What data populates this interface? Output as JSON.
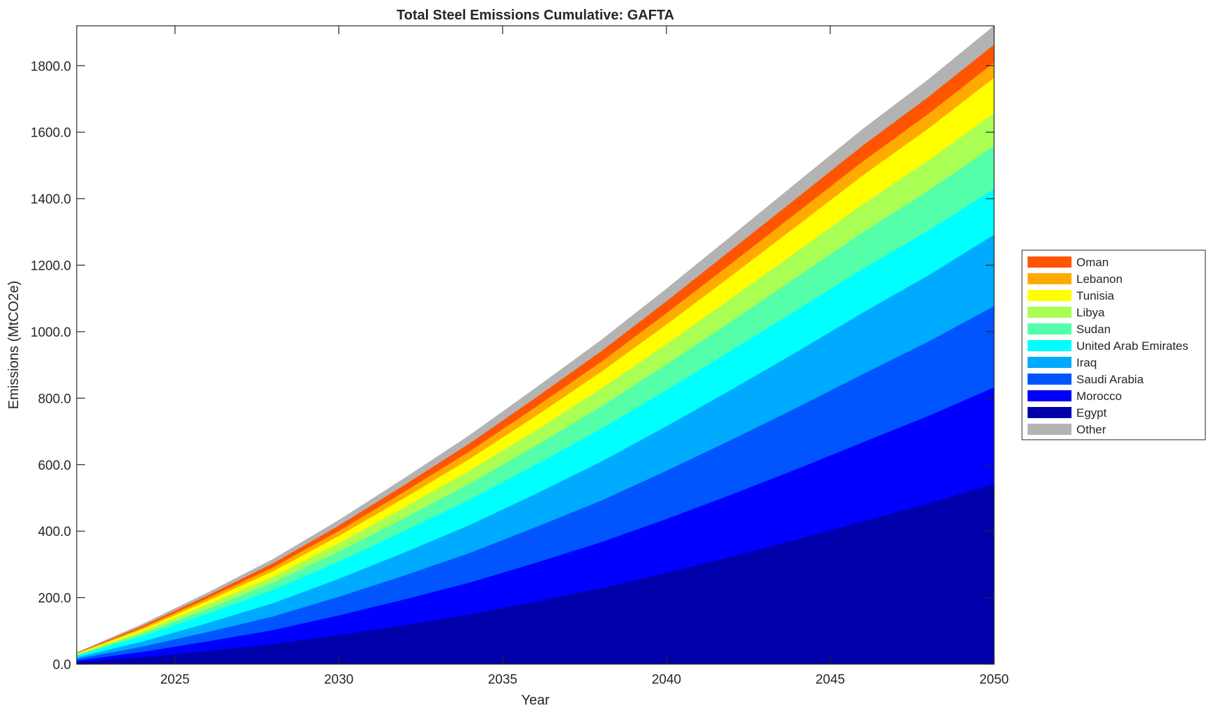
{
  "chart_data": {
    "type": "area",
    "stacked": true,
    "title": "Total Steel Emissions Cumulative: GAFTA",
    "xlabel": "Year",
    "ylabel": "Emissions (MtCO2e)",
    "xlim": [
      2022,
      2050
    ],
    "ylim": [
      0,
      1920
    ],
    "xticks": [
      2025,
      2030,
      2035,
      2040,
      2045,
      2050
    ],
    "yticks": [
      0,
      200,
      400,
      600,
      800,
      1000,
      1200,
      1400,
      1600,
      1800
    ],
    "ytick_labels": [
      "0.0",
      "200.0",
      "400.0",
      "600.0",
      "800.0",
      "1000.0",
      "1200.0",
      "1400.0",
      "1600.0",
      "1800.0"
    ],
    "legend_placement": "right",
    "grid": false,
    "x": [
      2022,
      2024,
      2026,
      2028,
      2030,
      2032,
      2034,
      2036,
      2038,
      2040,
      2042,
      2044,
      2046,
      2048,
      2050
    ],
    "series": [
      {
        "name": "Egypt",
        "color": "#0000aa",
        "values": [
          6,
          21,
          40,
          61,
          88,
          118,
          150,
          188,
          229,
          275,
          324,
          376,
          430,
          484,
          543
        ]
      },
      {
        "name": "Morocco",
        "color": "#0000ff",
        "values": [
          5,
          16,
          29,
          42,
          59,
          77,
          96,
          117,
          138,
          162,
          187,
          212,
          238,
          263,
          290
        ]
      },
      {
        "name": "Saudi Arabia",
        "color": "#0055ff",
        "values": [
          5,
          16,
          28,
          41,
          56,
          72,
          89,
          107,
          125,
          145,
          165,
          185,
          205,
          224,
          244
        ]
      },
      {
        "name": "Iraq",
        "color": "#00aaff",
        "values": [
          5,
          15,
          27,
          40,
          54,
          69,
          84,
          100,
          117,
          134,
          151,
          168,
          185,
          199,
          215
        ]
      },
      {
        "name": "United Arab Emirates",
        "color": "#00ffff",
        "values": [
          5,
          16,
          28,
          40,
          52,
          65,
          77,
          88,
          99,
          109,
          118,
          126,
          132,
          135,
          138
        ]
      },
      {
        "name": "Sudan",
        "color": "#55ffaa",
        "values": [
          2,
          8,
          15,
          22,
          30,
          39,
          48,
          57,
          67,
          77,
          88,
          99,
          110,
          120,
          130
        ]
      },
      {
        "name": "Libya",
        "color": "#aaff55",
        "values": [
          2,
          7,
          13,
          18,
          25,
          32,
          39,
          46,
          54,
          61,
          69,
          77,
          84,
          91,
          98
        ]
      },
      {
        "name": "Tunisia",
        "color": "#ffff00",
        "values": [
          2,
          6,
          11,
          16,
          22,
          28,
          35,
          43,
          50,
          59,
          68,
          77,
          87,
          96,
          106
        ]
      },
      {
        "name": "Lebanon",
        "color": "#ffaa00",
        "values": [
          1,
          5,
          8,
          12,
          15,
          19,
          23,
          27,
          30,
          34,
          37,
          40,
          42,
          44,
          46
        ]
      },
      {
        "name": "Oman",
        "color": "#ff5500",
        "values": [
          1,
          5,
          8,
          12,
          16,
          20,
          24,
          28,
          32,
          36,
          41,
          44,
          48,
          51,
          54
        ]
      },
      {
        "name": "Other",
        "color": "#b3b3b3",
        "values": [
          1,
          5,
          8,
          12,
          16,
          20,
          24,
          29,
          33,
          37,
          41,
          46,
          49,
          52,
          56
        ]
      }
    ],
    "legend_order": [
      "Oman",
      "Lebanon",
      "Tunisia",
      "Libya",
      "Sudan",
      "United Arab Emirates",
      "Iraq",
      "Saudi Arabia",
      "Morocco",
      "Egypt",
      "Other"
    ]
  }
}
